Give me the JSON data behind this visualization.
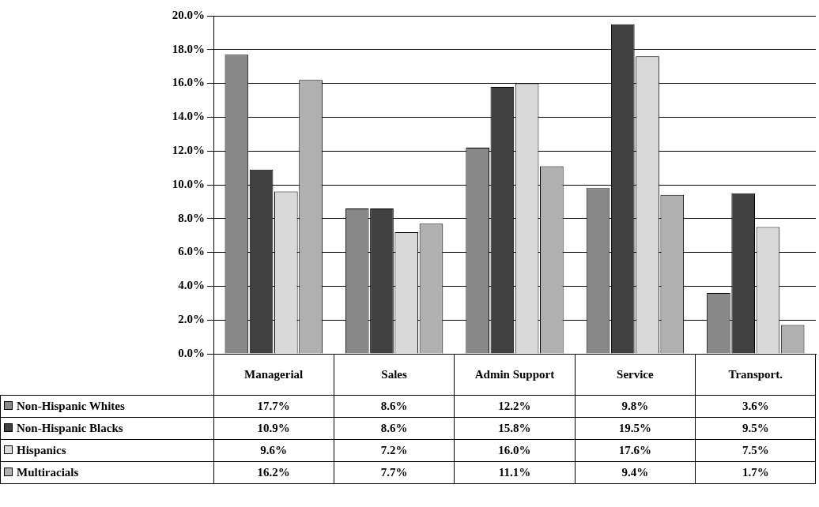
{
  "chart_data": {
    "type": "bar",
    "categories": [
      "Managerial",
      "Sales",
      "Admin Support",
      "Service",
      "Transport."
    ],
    "series": [
      {
        "name": "Non-Hispanic Whites",
        "color": "#888888",
        "values": [
          17.7,
          8.6,
          12.2,
          9.8,
          3.6
        ],
        "value_labels": [
          "17.7%",
          "8.6%",
          "12.2%",
          "9.8%",
          "3.6%"
        ]
      },
      {
        "name": "Non-Hispanic Blacks",
        "color": "#404040",
        "values": [
          10.9,
          8.6,
          15.8,
          19.5,
          9.5
        ],
        "value_labels": [
          "10.9%",
          "8.6%",
          "15.8%",
          "19.5%",
          "9.5%"
        ]
      },
      {
        "name": "Hispanics",
        "color": "#d9d9d9",
        "values": [
          9.6,
          7.2,
          16.0,
          17.6,
          7.5
        ],
        "value_labels": [
          "9.6%",
          "7.2%",
          "16.0%",
          "17.6%",
          "7.5%"
        ]
      },
      {
        "name": "Multiracials",
        "color": "#b0b0b0",
        "values": [
          16.2,
          7.7,
          11.1,
          9.4,
          1.7
        ],
        "value_labels": [
          "16.2%",
          "7.7%",
          "11.1%",
          "9.4%",
          "1.7%"
        ]
      }
    ],
    "ylim": [
      0,
      20
    ],
    "yticks": [
      {
        "value": 0,
        "label": "0.0%"
      },
      {
        "value": 2,
        "label": "2.0%"
      },
      {
        "value": 4,
        "label": "4.0%"
      },
      {
        "value": 6,
        "label": "6.0%"
      },
      {
        "value": 8,
        "label": "8.0%"
      },
      {
        "value": 10,
        "label": "10.0%"
      },
      {
        "value": 12,
        "label": "12.0%"
      },
      {
        "value": 14,
        "label": "14.0%"
      },
      {
        "value": 16,
        "label": "16.0%"
      },
      {
        "value": 18,
        "label": "18.0%"
      },
      {
        "value": 20,
        "label": "20.0%"
      }
    ],
    "grid": "y",
    "legend": "bottom"
  }
}
